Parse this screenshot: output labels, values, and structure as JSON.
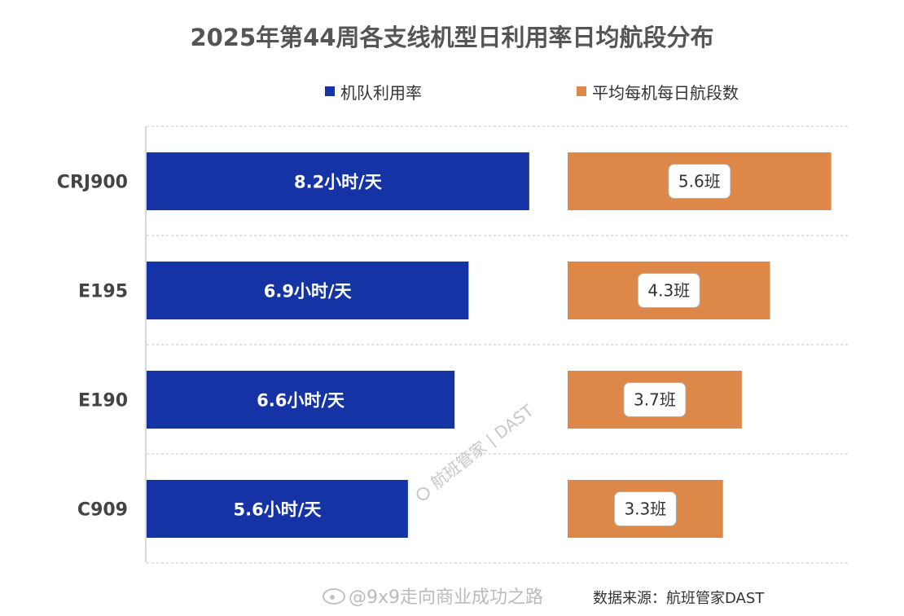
{
  "chart_data": {
    "type": "bar",
    "title": "2025年第44周各支线机型日利用率日均航段分布",
    "categories": [
      "CRJ900",
      "E195",
      "E190",
      "C909"
    ],
    "series": [
      {
        "name": "机队利用率",
        "values": [
          8.2,
          6.9,
          6.6,
          5.6
        ],
        "labels": [
          "8.2小时/天",
          "6.9小时/天",
          "6.6小时/天",
          "5.6小时/天"
        ],
        "color": "#1633a6"
      },
      {
        "name": "平均每机每日航段数",
        "values": [
          5.6,
          4.3,
          3.7,
          3.3
        ],
        "labels": [
          "5.6班",
          "4.3班",
          "3.7班",
          "3.3班"
        ],
        "color": "#dd8848"
      }
    ],
    "orientation": "horizontal",
    "legend_position": "top",
    "grid": true
  },
  "watermark": "航班管家 | DAST",
  "footer": {
    "weibo_handle": "@9x9走向商业成功之路",
    "source": "数据来源：航班管家DAST"
  }
}
